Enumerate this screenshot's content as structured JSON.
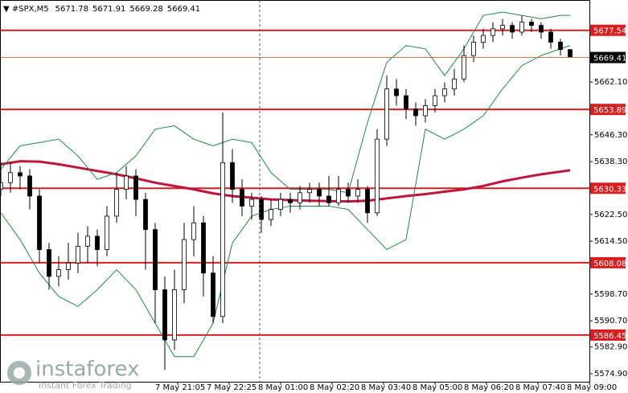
{
  "chart_data": {
    "type": "candlestick",
    "symbol": "#SPX,M5",
    "x": [
      0,
      3,
      6,
      9,
      12,
      15,
      18,
      21,
      24,
      27,
      30,
      33,
      36,
      39,
      42,
      45,
      48,
      51,
      54,
      57,
      60,
      63,
      66,
      69,
      72,
      75,
      78,
      81,
      84,
      87,
      90,
      93,
      96,
      99,
      102,
      105,
      108,
      111,
      114,
      117,
      120,
      123,
      126,
      129,
      132,
      135,
      138,
      141,
      144,
      147,
      150,
      153,
      156,
      159,
      162,
      165,
      168,
      171,
      174,
      177
    ],
    "open": [
      5630,
      5632,
      5635,
      5634,
      5628,
      5612,
      5604,
      5606,
      5608,
      5613,
      5616,
      5612,
      5622,
      5630,
      5634,
      5627,
      5618,
      5600,
      5585,
      5600,
      5615,
      5620,
      5605,
      5592,
      5638,
      5630,
      5625,
      5627,
      5621,
      5624,
      5627,
      5626,
      5629,
      5630,
      5628,
      5626,
      5630,
      5628,
      5630,
      5623,
      5645,
      5660,
      5658,
      5654,
      5652,
      5655,
      5658,
      5660,
      5663,
      5670,
      5674,
      5676,
      5678,
      5679,
      5677,
      5680,
      5679,
      5677,
      5674,
      5671.78
    ],
    "high": [
      5638,
      5638,
      5637,
      5636,
      5630,
      5614,
      5610,
      5614,
      5617,
      5619,
      5618,
      5625,
      5635,
      5637,
      5636,
      5629,
      5620,
      5604,
      5606,
      5620,
      5625,
      5622,
      5610,
      5653,
      5642,
      5633,
      5629,
      5628,
      5627,
      5629,
      5629,
      5631,
      5632,
      5632,
      5634,
      5634,
      5632,
      5633,
      5631,
      5648,
      5664,
      5663,
      5660,
      5656,
      5657,
      5660,
      5662,
      5666,
      5673,
      5676,
      5678,
      5680,
      5681,
      5680,
      5682,
      5681,
      5680,
      5678,
      5675,
      5671.91
    ],
    "low": [
      5628,
      5629,
      5630,
      5624,
      5608,
      5600,
      5601,
      5603,
      5605,
      5608,
      5607,
      5610,
      5620,
      5627,
      5622,
      5606,
      5590,
      5576,
      5582,
      5596,
      5610,
      5598,
      5590,
      5590,
      5626,
      5622,
      5621,
      5617,
      5619,
      5622,
      5623,
      5624,
      5626,
      5625,
      5625,
      5625,
      5626,
      5626,
      5620,
      5622,
      5643,
      5655,
      5651,
      5649,
      5650,
      5653,
      5656,
      5658,
      5662,
      5668,
      5672,
      5674,
      5676,
      5675,
      5676,
      5677,
      5675,
      5672,
      5670,
      5669.28
    ],
    "close": [
      5632,
      5635,
      5634,
      5628,
      5612,
      5604,
      5606,
      5608,
      5613,
      5616,
      5612,
      5622,
      5630,
      5634,
      5627,
      5618,
      5600,
      5585,
      5600,
      5615,
      5620,
      5605,
      5592,
      5638,
      5630,
      5625,
      5627,
      5621,
      5624,
      5627,
      5626,
      5629,
      5630,
      5628,
      5626,
      5630,
      5628,
      5630,
      5623,
      5645,
      5660,
      5658,
      5654,
      5652,
      5655,
      5658,
      5660,
      5663,
      5670,
      5674,
      5676,
      5678,
      5679,
      5677,
      5680,
      5679,
      5677,
      5674,
      5671.78,
      5669.41
    ],
    "overlay_x": [
      0,
      6,
      12,
      18,
      24,
      30,
      36,
      42,
      48,
      54,
      60,
      66,
      72,
      78,
      84,
      90,
      96,
      102,
      108,
      114,
      120,
      126,
      132,
      138,
      144,
      150,
      156,
      162,
      168,
      174,
      177
    ],
    "overlays": [
      {
        "color": "#c0143c",
        "values": [
          5637.5,
          5638.4,
          5638.3,
          5637.5,
          5636.5,
          5635.5,
          5634.5,
          5633.3,
          5632,
          5631,
          5630,
          5628.8,
          5628,
          5627.5,
          5627,
          5626.8,
          5626.6,
          5626.5,
          5626.4,
          5626.6,
          5627.3,
          5628,
          5628.6,
          5629.3,
          5630,
          5631,
          5632.4,
          5633.5,
          5634.5,
          5635.3,
          5635.7
        ]
      },
      {
        "color": "#1e8a46",
        "values": [
          5636,
          5643,
          5644,
          5645,
          5640,
          5633,
          5635,
          5640,
          5648,
          5649,
          5645,
          5643,
          5645,
          5644,
          5635,
          5630,
          5630,
          5630,
          5629,
          5650,
          5668,
          5673,
          5672,
          5664,
          5672,
          5682,
          5683,
          5682,
          5681,
          5682,
          5682
        ]
      },
      {
        "color": "#1e8a46",
        "values": [
          5623,
          5615,
          5605,
          5598,
          5595,
          5600,
          5606,
          5600,
          5590,
          5580,
          5580,
          5590,
          5614,
          5622,
          5624,
          5625,
          5625,
          5625,
          5624,
          5618,
          5612,
          5615,
          5648,
          5645,
          5648,
          5652,
          5660,
          5667,
          5670,
          5672,
          5673
        ]
      }
    ],
    "levels": [
      5677.54,
      5653.89,
      5630.33,
      5608.08,
      5586.45
    ],
    "level_color": "#d81e1e",
    "xlim": [
      0,
      183
    ],
    "xticks": [
      {
        "value": 55,
        "label": "7 May 21:05"
      },
      {
        "value": 71,
        "label": "7 May 22:25"
      },
      {
        "value": 87,
        "label": "8 May 01:00"
      },
      {
        "value": 103,
        "label": "8 May 02:20"
      },
      {
        "value": 119,
        "label": "8 May 03:40"
      },
      {
        "value": 135,
        "label": "8 May 05:00"
      },
      {
        "value": 151,
        "label": "8 May 06:20"
      },
      {
        "value": 167,
        "label": "8 May 07:40"
      },
      {
        "value": 183,
        "label": "8 May 09:00"
      }
    ],
    "ylim": [
      5572.5,
      5686.6
    ],
    "yticks": [
      {
        "value": 5662.1,
        "label": "5662.10"
      },
      {
        "value": 5646.3,
        "label": "5646.30"
      },
      {
        "value": 5638.3,
        "label": "5638.30"
      },
      {
        "value": 5622.5,
        "label": "5622.50"
      },
      {
        "value": 5614.5,
        "label": "5614.50"
      },
      {
        "value": 5598.7,
        "label": "5598.70"
      },
      {
        "value": 5590.7,
        "label": "5590.70"
      },
      {
        "value": 5582.9,
        "label": "5582.90"
      },
      {
        "value": 5574.9,
        "label": "5574.90"
      }
    ]
  },
  "watermark": {
    "name": "instaforex",
    "tagline": "Instant Forex Trading"
  }
}
